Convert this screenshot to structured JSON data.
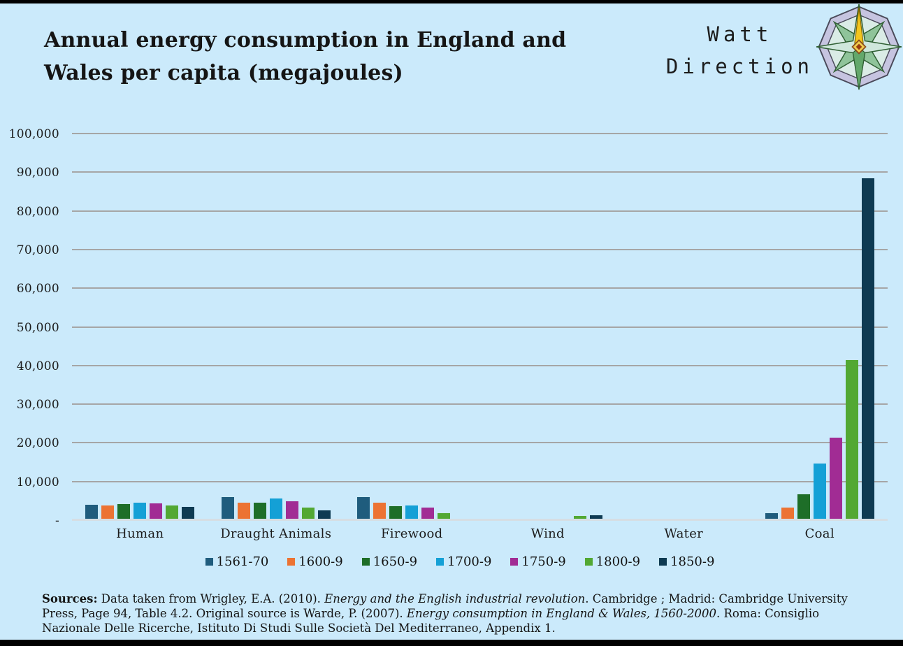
{
  "title": {
    "full": "Annual energy consumption in England and Wales per capita (megajoules)",
    "line1": "Annual energy consumption in England and",
    "line2": "Wales per capita (megajoules)"
  },
  "logo": {
    "name": "Watt Direction",
    "line1": "Watt",
    "line2": "Direction",
    "icon": "compass-rose-icon"
  },
  "colors": {
    "background": "#cbeafb",
    "gridline": "#a6a6a6",
    "baseline": "#d6dee3",
    "text": "#171717",
    "frame_bar": "#000000"
  },
  "chart_data": {
    "type": "bar",
    "title": "Annual energy consumption in England and Wales per capita (megajoules)",
    "xlabel": "",
    "ylabel": "",
    "categories": [
      "Human",
      "Draught Animals",
      "Firewood",
      "Wind",
      "Water",
      "Coal"
    ],
    "series": [
      {
        "name": "1561-70",
        "color": "#1f5c7d",
        "values": [
          4016,
          5927,
          6059,
          19,
          168,
          1831
        ]
      },
      {
        "name": "1600-9",
        "color": "#ec7333",
        "values": [
          3868,
          4589,
          4575,
          30,
          165,
          3180
        ]
      },
      {
        "name": "1650-9",
        "color": "#1e6e28",
        "values": [
          4163,
          4462,
          3679,
          62,
          203,
          6735
        ]
      },
      {
        "name": "1700-9",
        "color": "#14a0d6",
        "values": [
          4436,
          5623,
          3849,
          78,
          253,
          14654
        ]
      },
      {
        "name": "1750-9",
        "color": "#a12c94",
        "values": [
          4405,
          4867,
          3263,
          411,
          282,
          21265
        ]
      },
      {
        "name": "1800-9",
        "color": "#52a833",
        "values": [
          3882,
          3249,
          1836,
          1097,
          376,
          41351
        ]
      },
      {
        "name": "1850-9",
        "color": "#0e3a52",
        "values": [
          3458,
          2612,
          2,
          1283,
          240,
          88465
        ]
      }
    ],
    "ylim": [
      0,
      100000
    ],
    "ytick_interval": 10000,
    "ytick_labels": [
      "100,000",
      "90,000",
      "80,000",
      "70,000",
      "60,000",
      "50,000",
      "40,000",
      "30,000",
      "20,000",
      "10,000",
      "-"
    ],
    "grid": true,
    "legend_position": "bottom"
  },
  "sources": {
    "segments": [
      {
        "text": "Sources:",
        "bold": true
      },
      {
        "text": " Data taken from Wrigley, E.A. (2010). "
      },
      {
        "text": "Energy and the English industrial revolution",
        "italic": true
      },
      {
        "text": ". Cambridge ; Madrid: Cambridge University Press, Page 94, Table 4.2. Original source is Warde, P. (2007). "
      },
      {
        "text": "Energy consumption in England & Wales, 1560-2000",
        "italic": true
      },
      {
        "text": ". Roma: Consiglio Nazionale Delle Ricerche, Istituto Di Studi Sulle Società Del Mediterraneo, Appendix 1."
      }
    ]
  }
}
